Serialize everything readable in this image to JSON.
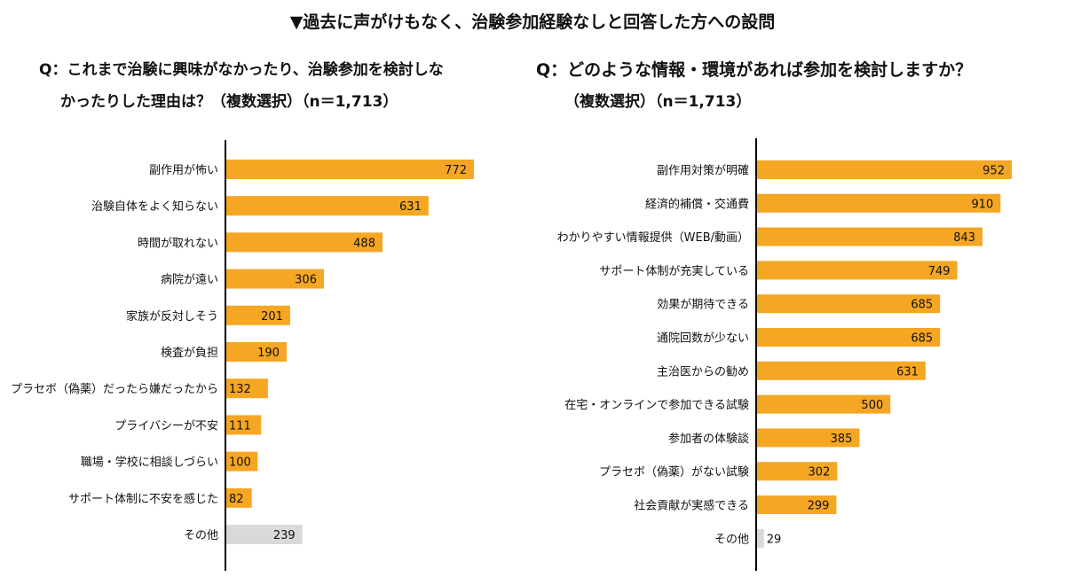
{
  "header": "▼過去に声がけもなく、治験参加経験なしと回答した方への設問",
  "colors": {
    "bar": "#F5A623",
    "other": "#D9D9D9",
    "text": "#111111"
  },
  "chart_data": [
    {
      "type": "bar",
      "orientation": "horizontal",
      "title_line1": "Q：これまで治験に興味がなかったり、治験参加を検討しな",
      "title_line2": "かったりした理由は？（複数選択）（n＝1,713）",
      "categories": [
        "副作用が怖い",
        "治験自体をよく知らない",
        "時間が取れない",
        "病院が遠い",
        "家族が反対しそう",
        "検査が負担",
        "プラセボ（偽薬）だったら嫌だったから",
        "プライバシーが不安",
        "職場・学校に相談しづらい",
        "サポート体制に不安を感じた",
        "その他"
      ],
      "values": [
        772,
        631,
        488,
        306,
        201,
        190,
        132,
        111,
        100,
        82,
        239
      ],
      "value_labels": [
        "772",
        "631",
        "488",
        "306",
        "201",
        "190",
        "132",
        "111",
        "100",
        "82",
        "239"
      ],
      "xlim": [
        0,
        900
      ]
    },
    {
      "type": "bar",
      "orientation": "horizontal",
      "title_line1": "Q：どのような情報・環境があれば参加を検討しますか？",
      "title_line2": "（複数選択）（n＝1,713）",
      "categories": [
        "副作用対策が明確",
        "経済的補償・交通費",
        "わかりやすい情報提供（WEB/動画）",
        "サポート体制が充実している",
        "効果が期待できる",
        "通院回数が少ない",
        "主治医からの勧め",
        "在宅・オンラインで参加できる試験",
        "参加者の体験談",
        "プラセボ（偽薬）がない試験",
        "社会貢献が実感できる",
        "その他"
      ],
      "values": [
        952,
        910,
        843,
        749,
        685,
        685,
        631,
        500,
        385,
        302,
        299,
        29
      ],
      "value_labels": [
        "952",
        "910",
        "843",
        "749",
        "685",
        "685",
        "631",
        "500",
        "385",
        "302",
        "299",
        "29"
      ],
      "xlim": [
        0,
        1000
      ]
    }
  ]
}
